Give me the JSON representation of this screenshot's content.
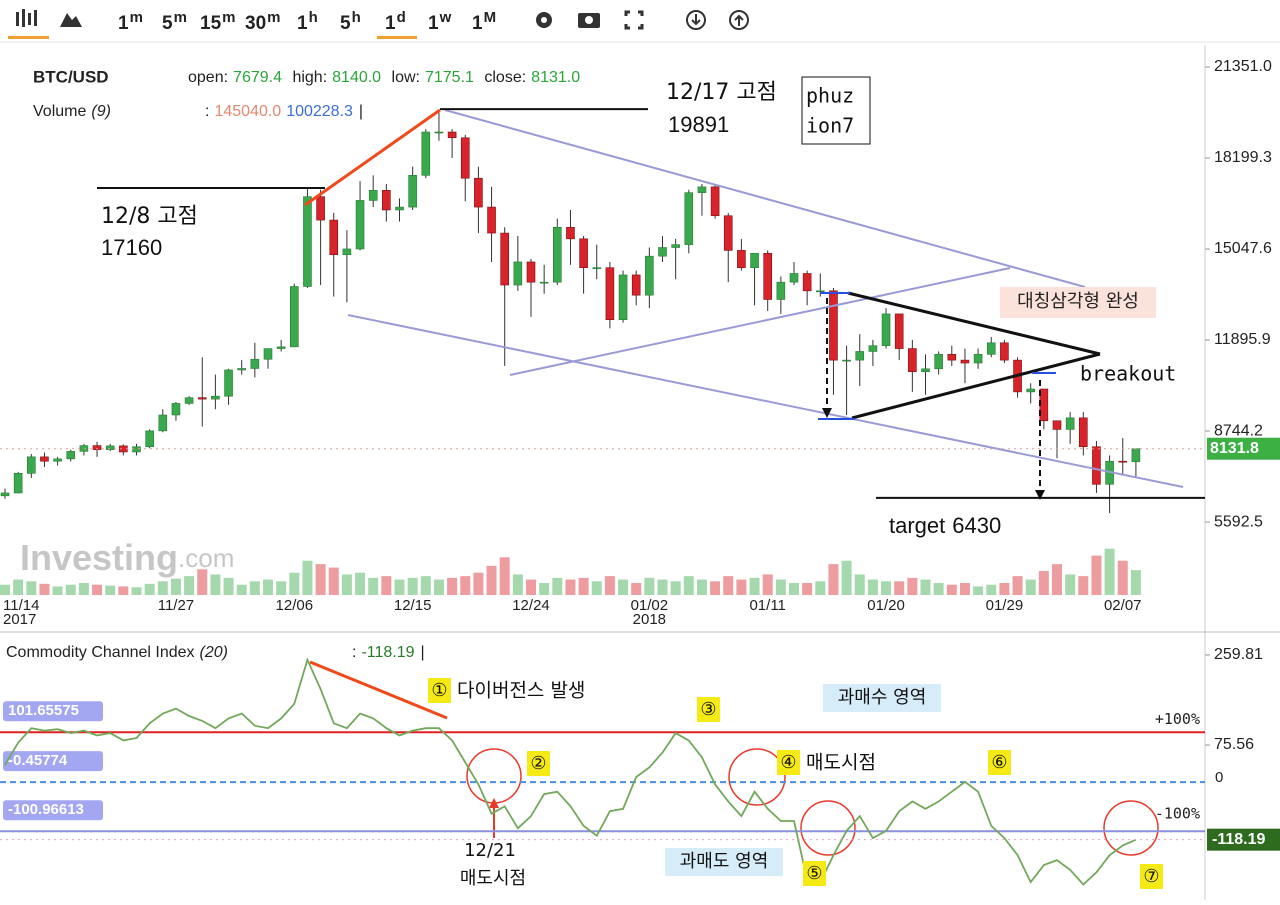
{
  "toolbar": {
    "intervals": [
      {
        "num": "1",
        "unit": "m"
      },
      {
        "num": "5",
        "unit": "m"
      },
      {
        "num": "15",
        "unit": "m"
      },
      {
        "num": "30",
        "unit": "m"
      },
      {
        "num": "1",
        "unit": "h"
      },
      {
        "num": "5",
        "unit": "h"
      },
      {
        "num": "1",
        "unit": "d",
        "selected": true
      },
      {
        "num": "1",
        "unit": "w"
      },
      {
        "num": "1",
        "unit": "M"
      }
    ]
  },
  "chart_data": [
    {
      "type": "candlestick",
      "symbol": "BTC/USD",
      "header": [
        {
          "label": "open:",
          "value": "7679.4"
        },
        {
          "label": "high:",
          "value": "8140.0"
        },
        {
          "label": "low:",
          "value": "7175.1"
        },
        {
          "label": "close:",
          "value": "8131.0"
        }
      ],
      "volume_legend": {
        "name": "Volume",
        "period": "(9)",
        "separator": ":",
        "values": [
          "145040.0",
          "100228.3"
        ],
        "end": "|"
      },
      "categories": [
        "11/14",
        null,
        null,
        null,
        null,
        null,
        null,
        null,
        null,
        null,
        null,
        null,
        null,
        "11/27",
        null,
        null,
        null,
        null,
        null,
        null,
        null,
        null,
        "12/06",
        null,
        null,
        null,
        null,
        null,
        null,
        null,
        null,
        "12/15",
        null,
        null,
        null,
        null,
        null,
        null,
        null,
        null,
        "12/24",
        null,
        null,
        null,
        null,
        null,
        null,
        null,
        null,
        "01/02",
        null,
        null,
        null,
        null,
        null,
        null,
        null,
        null,
        "01/11",
        null,
        null,
        null,
        null,
        null,
        null,
        null,
        null,
        "01/20",
        null,
        null,
        null,
        null,
        null,
        null,
        null,
        null,
        "01/29",
        null,
        null,
        null,
        null,
        null,
        null,
        null,
        null,
        "02/07",
        null
      ],
      "x_sublabels": [
        "2017",
        null,
        null,
        null,
        null,
        null,
        null,
        null,
        null,
        null,
        null,
        null,
        null,
        null,
        null,
        null,
        null,
        null,
        null,
        null,
        null,
        null,
        null,
        null,
        null,
        null,
        null,
        null,
        null,
        null,
        null,
        null,
        null,
        null,
        null,
        null,
        null,
        null,
        null,
        null,
        null,
        null,
        null,
        null,
        null,
        null,
        null,
        null,
        null,
        "2018",
        null,
        null,
        null,
        null,
        null,
        null,
        null,
        null,
        null,
        null,
        null,
        null,
        null,
        null,
        null,
        null,
        null,
        null,
        null,
        null,
        null,
        null,
        null,
        null,
        null,
        null,
        null,
        null,
        null,
        null,
        null,
        null,
        null,
        null,
        null,
        null,
        null
      ],
      "ohlc": [
        [
          6500,
          6750,
          6400,
          6600
        ],
        [
          6600,
          7330,
          6580,
          7280
        ],
        [
          7280,
          7950,
          7120,
          7850
        ],
        [
          7850,
          8000,
          7500,
          7700
        ],
        [
          7700,
          7850,
          7550,
          7780
        ],
        [
          7780,
          8100,
          7690,
          8040
        ],
        [
          8040,
          8300,
          7900,
          8240
        ],
        [
          8240,
          8370,
          7850,
          8100
        ],
        [
          8100,
          8300,
          8050,
          8230
        ],
        [
          8230,
          8280,
          7900,
          8020
        ],
        [
          8020,
          8300,
          7900,
          8200
        ],
        [
          8200,
          8800,
          8150,
          8750
        ],
        [
          8750,
          9500,
          8700,
          9300
        ],
        [
          9300,
          9750,
          9100,
          9700
        ],
        [
          9700,
          9950,
          9650,
          9900
        ],
        [
          9900,
          11300,
          8900,
          9850
        ],
        [
          9850,
          10700,
          9500,
          9950
        ],
        [
          9950,
          10900,
          9650,
          10860
        ],
        [
          10860,
          11200,
          10700,
          10910
        ],
        [
          10910,
          11800,
          10600,
          11230
        ],
        [
          11230,
          11600,
          10900,
          11600
        ],
        [
          11600,
          11900,
          11500,
          11660
        ],
        [
          11660,
          13850,
          11650,
          13750
        ],
        [
          13750,
          17160,
          13700,
          16860
        ],
        [
          16860,
          17100,
          13800,
          16050
        ],
        [
          16050,
          16300,
          13400,
          14850
        ],
        [
          14850,
          15700,
          13200,
          15050
        ],
        [
          15050,
          17400,
          15000,
          16730
        ],
        [
          16730,
          17600,
          16500,
          17080
        ],
        [
          17080,
          17300,
          16000,
          16400
        ],
        [
          16400,
          16800,
          16000,
          16500
        ],
        [
          16500,
          17900,
          16400,
          17600
        ],
        [
          17600,
          19200,
          17500,
          19100
        ],
        [
          19100,
          19891,
          18800,
          19100
        ],
        [
          19100,
          19200,
          18200,
          18900
        ],
        [
          18900,
          19000,
          16700,
          17500
        ],
        [
          17500,
          17900,
          15600,
          16500
        ],
        [
          16500,
          17200,
          14600,
          15600
        ],
        [
          15600,
          15800,
          11000,
          13800
        ],
        [
          13800,
          15500,
          13600,
          14600
        ],
        [
          14600,
          14700,
          12700,
          13900
        ],
        [
          13900,
          14500,
          13500,
          13900
        ],
        [
          13900,
          16100,
          13800,
          15800
        ],
        [
          15800,
          16400,
          14500,
          15400
        ],
        [
          15400,
          15500,
          13500,
          14400
        ],
        [
          14400,
          15200,
          14000,
          14400
        ],
        [
          14400,
          14600,
          12300,
          12600
        ],
        [
          12600,
          14300,
          12500,
          14150
        ],
        [
          14150,
          14300,
          13100,
          13450
        ],
        [
          13450,
          15100,
          13000,
          14800
        ],
        [
          14800,
          15500,
          14600,
          15100
        ],
        [
          15100,
          15400,
          14000,
          15200
        ],
        [
          15200,
          17100,
          14900,
          17000
        ],
        [
          17000,
          17300,
          16200,
          17200
        ],
        [
          17200,
          17300,
          16100,
          16200
        ],
        [
          16200,
          16300,
          13900,
          15000
        ],
        [
          15000,
          15400,
          14300,
          14400
        ],
        [
          14400,
          14900,
          13100,
          14900
        ],
        [
          14900,
          15000,
          12900,
          13300
        ],
        [
          13300,
          14100,
          12800,
          13900
        ],
        [
          13900,
          14600,
          13800,
          14200
        ],
        [
          14200,
          14300,
          13100,
          13600
        ],
        [
          13600,
          14200,
          13400,
          13600
        ],
        [
          13600,
          13700,
          10000,
          11200
        ],
        [
          11200,
          11700,
          9300,
          11200
        ],
        [
          11200,
          12100,
          10300,
          11500
        ],
        [
          11500,
          11900,
          11000,
          11700
        ],
        [
          11700,
          13000,
          11600,
          12800
        ],
        [
          12800,
          12800,
          11200,
          11600
        ],
        [
          11600,
          11900,
          10100,
          10800
        ],
        [
          10800,
          11400,
          10000,
          10900
        ],
        [
          10900,
          11500,
          10700,
          11400
        ],
        [
          11400,
          11700,
          11000,
          11200
        ],
        [
          11200,
          11600,
          10400,
          11100
        ],
        [
          11100,
          11600,
          10900,
          11400
        ],
        [
          11400,
          12000,
          11300,
          11800
        ],
        [
          11800,
          11900,
          11100,
          11200
        ],
        [
          11200,
          11300,
          9900,
          10100
        ],
        [
          10100,
          10400,
          9700,
          10200
        ],
        [
          10200,
          10200,
          8800,
          9100
        ],
        [
          9100,
          9100,
          7800,
          8800
        ],
        [
          8800,
          9400,
          8300,
          9200
        ],
        [
          9200,
          9400,
          7900,
          8200
        ],
        [
          8200,
          8400,
          6600,
          6900
        ],
        [
          6900,
          7900,
          5900,
          7700
        ],
        [
          7700,
          8500,
          7200,
          7679.4
        ],
        [
          7679.4,
          8140,
          7175.1,
          8131
        ]
      ],
      "volume": [
        60000,
        90000,
        80000,
        65000,
        50000,
        60000,
        70000,
        60000,
        55000,
        50000,
        45000,
        65000,
        80000,
        95000,
        110000,
        150000,
        120000,
        100000,
        60000,
        80000,
        90000,
        80000,
        130000,
        200000,
        180000,
        160000,
        120000,
        130000,
        100000,
        110000,
        90000,
        100000,
        110000,
        90000,
        100000,
        110000,
        130000,
        170000,
        220000,
        120000,
        90000,
        70000,
        100000,
        90000,
        100000,
        80000,
        110000,
        90000,
        70000,
        100000,
        90000,
        80000,
        110000,
        90000,
        80000,
        110000,
        90000,
        100000,
        120000,
        90000,
        70000,
        70000,
        80000,
        180000,
        200000,
        120000,
        90000,
        80000,
        80000,
        100000,
        90000,
        70000,
        60000,
        70000,
        50000,
        60000,
        70000,
        110000,
        90000,
        140000,
        180000,
        120000,
        110000,
        230000,
        270000,
        200000,
        145040
      ],
      "up_color": "#3aa84c",
      "down_color": "#d8232a",
      "ylim": [
        3066,
        22113
      ],
      "yticks": [
        {
          "value": 21351,
          "label": "21351.0"
        },
        {
          "value": 18199.3,
          "label": "18199.3"
        },
        {
          "value": 15047.6,
          "label": "15047.6"
        },
        {
          "value": 11895.9,
          "label": "11895.9"
        },
        {
          "value": 8744.2,
          "label": "8744.2"
        },
        {
          "value": 5592.5,
          "label": "5592.5"
        }
      ],
      "vlim": [
        0,
        350000
      ],
      "last_price": 8131.8,
      "annotations": [
        {
          "label": "12/17 고점",
          "value": 19891
        },
        {
          "label": "12/8 고점",
          "value": 17160
        },
        {
          "label": "target",
          "value": 6430
        }
      ],
      "note_box": [
        "phuz",
        "ion7"
      ],
      "pattern_label": "대칭삼각형 완성",
      "breakout_label": "breakout",
      "watermark": [
        "Investing",
        ".com"
      ]
    },
    {
      "type": "line",
      "title": "Commodity Channel Index",
      "period": "(20)",
      "separator": ":",
      "current": -118.19,
      "end": "|",
      "values": [
        35,
        80,
        110,
        105,
        108,
        100,
        105,
        95,
        100,
        85,
        90,
        120,
        140,
        150,
        135,
        125,
        110,
        130,
        140,
        115,
        110,
        130,
        160,
        250,
        190,
        120,
        110,
        140,
        130,
        110,
        95,
        105,
        110,
        110,
        85,
        40,
        -5,
        -65,
        -50,
        -95,
        -70,
        -25,
        -20,
        -50,
        -90,
        -110,
        -60,
        -55,
        10,
        30,
        60,
        100,
        85,
        50,
        -5,
        -40,
        -70,
        -20,
        -55,
        -80,
        -80,
        -200,
        -205,
        -150,
        -100,
        -70,
        -115,
        -100,
        -60,
        -40,
        -55,
        -40,
        -20,
        0,
        -20,
        -90,
        -115,
        -150,
        -205,
        -170,
        -160,
        -180,
        -210,
        -185,
        -150,
        -130,
        -118.19
      ],
      "color": "#72a85a",
      "ylim": [
        -241.7,
        290.5
      ],
      "yticks": [
        259.81,
        75.56
      ],
      "levels": [
        {
          "value": 101.65575,
          "color": "#e02020",
          "dashed": false
        },
        {
          "value": -0.45774,
          "color": "#4a8ee0",
          "dashed": true
        },
        {
          "value": -100.96613,
          "color": "#8c8fe0",
          "dashed": false
        }
      ],
      "level_labels": [
        "+100%",
        "0",
        "-100%"
      ],
      "markers": [
        {
          "symbol": "①",
          "text": "다이버전스 발생"
        },
        {
          "symbol": "②"
        },
        {
          "symbol": "③"
        },
        {
          "symbol": "④",
          "text": "매도시점"
        },
        {
          "symbol": "⑤"
        },
        {
          "symbol": "⑥"
        },
        {
          "symbol": "⑦"
        }
      ],
      "zones": [
        "과매수 영역",
        "과매도 영역"
      ],
      "signal": [
        "12/21",
        "매도시점"
      ]
    }
  ]
}
